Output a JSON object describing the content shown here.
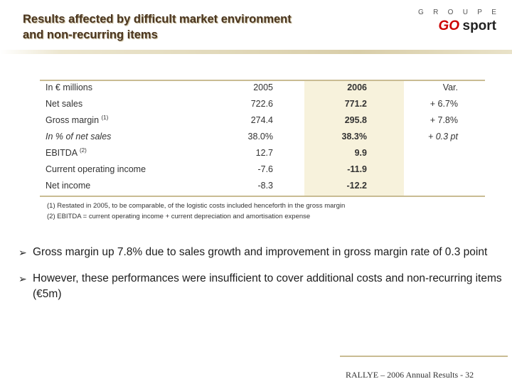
{
  "header": {
    "title_line1": "Results affected by difficult market environment",
    "title_line2": "and non-recurring items"
  },
  "logo": {
    "groupe_letters": [
      "G",
      "R",
      "O",
      "U",
      "P",
      "E"
    ],
    "brand_go": "GO",
    "brand_sport": "sport"
  },
  "table": {
    "headers": {
      "label": "In € millions",
      "y2005": "2005",
      "y2006": "2006",
      "var": "Var."
    },
    "rows": [
      {
        "label": "Net sales",
        "sup": "",
        "y2005": "722.6",
        "y2006": "771.2",
        "var": "+ 6.7%"
      },
      {
        "label": "Gross margin",
        "sup": "(1)",
        "y2005": "274.4",
        "y2006": "295.8",
        "var": "+ 7.8%"
      },
      {
        "label": "In % of net sales",
        "sup": "",
        "y2005": "38.0%",
        "y2006": "38.3%",
        "var": "+ 0.3 pt"
      },
      {
        "label": "EBITDA",
        "sup": "(2)",
        "y2005": "12.7",
        "y2006": "9.9",
        "var": ""
      },
      {
        "label": "Current operating income",
        "sup": "",
        "y2005": "-7.6",
        "y2006": "-11.9",
        "var": ""
      },
      {
        "label": "Net income",
        "sup": "",
        "y2005": "-8.3",
        "y2006": "-12.2",
        "var": ""
      }
    ]
  },
  "footnotes": [
    "(1) Restated in 2005, to be comparable, of the logistic costs included henceforth in the gross margin",
    "(2) EBITDA = current operating income + current depreciation and amortisation expense"
  ],
  "bullets": [
    "Gross margin up 7.8% due to sales growth and improvement in gross margin rate of 0.3 point",
    "However, these performances were insufficient to cover additional costs and non-recurring items (€5m)"
  ],
  "footer": {
    "text": "RALLYE – 2006 Annual Results - 32"
  }
}
